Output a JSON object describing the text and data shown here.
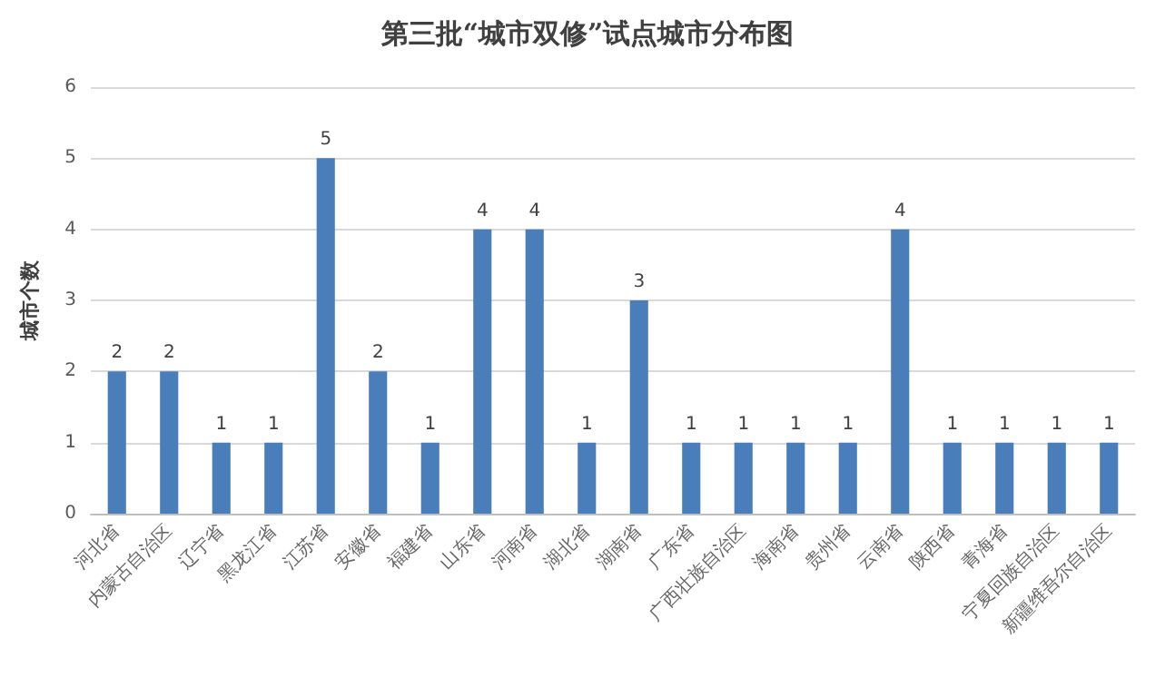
{
  "chart_data": {
    "type": "bar",
    "title": "第三批“城市双修”试点城市分布图",
    "ylabel": "城市个数",
    "categories": [
      "河北省",
      "内蒙古自治区",
      "辽宁省",
      "黑龙江省",
      "江苏省",
      "安徽省",
      "福建省",
      "山东省",
      "河南省",
      "湖北省",
      "湖南省",
      "广东省",
      "广西壮族自治区",
      "海南省",
      "贵州省",
      "云南省",
      "陕西省",
      "青海省",
      "宁夏回族自治区",
      "新疆维吾尔自治区"
    ],
    "values": [
      2,
      2,
      1,
      1,
      5,
      2,
      1,
      4,
      4,
      1,
      3,
      1,
      1,
      1,
      1,
      4,
      1,
      1,
      1,
      1
    ],
    "color": "#4a7ebb",
    "ylim": [
      0,
      6
    ],
    "yticks": [
      0,
      1,
      2,
      3,
      4,
      5,
      6
    ],
    "grid": "y",
    "data_labels": true
  }
}
